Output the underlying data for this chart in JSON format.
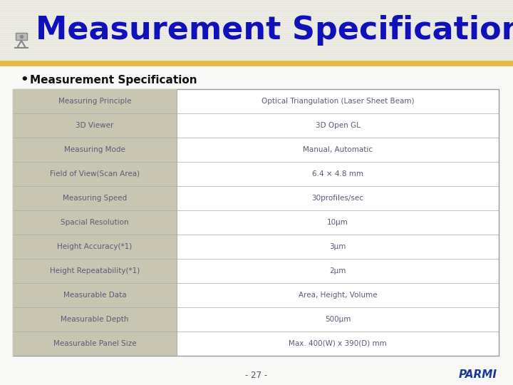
{
  "title": "Measurement Specification",
  "title_color": "#1111BB",
  "title_fontsize": 32,
  "page_bg": "#F8F8F6",
  "header_bg": "#EEEEE6",
  "header_line_color": "#CCCCBB",
  "gold_bar_color": "#E8B84B",
  "bullet_label": "Measurement Specification",
  "bullet_fontsize": 11,
  "table_left_bg": "#C8C6B0",
  "table_border_color": "#999999",
  "table_text_color": "#5A5A7A",
  "table_rows": [
    [
      "Measuring Principle",
      "Optical Triangulation (Laser Sheet Beam)"
    ],
    [
      "3D Viewer",
      "3D Open GL"
    ],
    [
      "Measuring Mode",
      "Manual, Automatic"
    ],
    [
      "Field of View(Scan Area)",
      "6.4 × 4.8 mm"
    ],
    [
      "Measuring Speed",
      "30profiles/sec"
    ],
    [
      "Spacial Resolution",
      "10μm"
    ],
    [
      "Height Accuracy(*1)",
      "3μm"
    ],
    [
      "Height Repeatability(*1)",
      "2μm"
    ],
    [
      "Measurable Data",
      "Area, Height, Volume"
    ],
    [
      "Measurable Depth",
      "500μm"
    ],
    [
      "Measurable Panel Size",
      "Max. 400(W) x 390(D) mm"
    ]
  ],
  "footer_text": "- 27 -",
  "footer_brand": "PARMI",
  "footer_brand_color": "#1A3A9A"
}
